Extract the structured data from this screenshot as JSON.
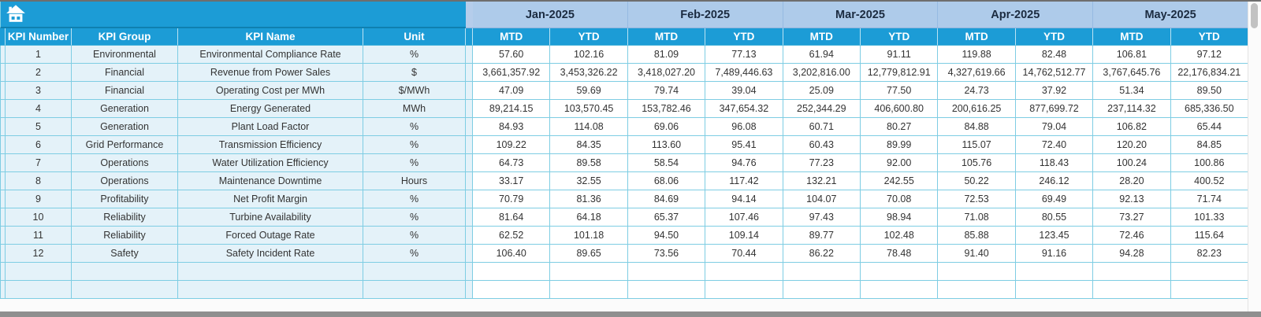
{
  "colors": {
    "header_cyan": "#1c9cd6",
    "month_header_blue": "#aecbea",
    "row_label_bg": "#e4f2f9",
    "grid_border_cyan": "#7ecde3",
    "month_text": "#1b2b40"
  },
  "labels": {
    "mtd": "MTD",
    "ytd": "YTD"
  },
  "table": {
    "left_headers": [
      "KPI Number",
      "KPI Group",
      "KPI Name",
      "Unit"
    ],
    "months": [
      "Jan-2025",
      "Feb-2025",
      "Mar-2025",
      "Apr-2025",
      "May-2025"
    ],
    "sub_headers": [
      "MTD",
      "YTD"
    ],
    "empty_row_count": 2,
    "rows": [
      {
        "kpi_number": "1",
        "kpi_group": "Environmental",
        "kpi_name": "Environmental Compliance Rate",
        "unit": "%",
        "values": [
          "57.60",
          "102.16",
          "81.09",
          "77.13",
          "61.94",
          "91.11",
          "119.88",
          "82.48",
          "106.81",
          "97.12"
        ]
      },
      {
        "kpi_number": "2",
        "kpi_group": "Financial",
        "kpi_name": "Revenue from Power Sales",
        "unit": "$",
        "values": [
          "3,661,357.92",
          "3,453,326.22",
          "3,418,027.20",
          "7,489,446.63",
          "3,202,816.00",
          "12,779,812.91",
          "4,327,619.66",
          "14,762,512.77",
          "3,767,645.76",
          "22,176,834.21"
        ]
      },
      {
        "kpi_number": "3",
        "kpi_group": "Financial",
        "kpi_name": "Operating Cost per MWh",
        "unit": "$/MWh",
        "values": [
          "47.09",
          "59.69",
          "79.74",
          "39.04",
          "25.09",
          "77.50",
          "24.73",
          "37.92",
          "51.34",
          "89.50"
        ]
      },
      {
        "kpi_number": "4",
        "kpi_group": "Generation",
        "kpi_name": "Energy Generated",
        "unit": "MWh",
        "values": [
          "89,214.15",
          "103,570.45",
          "153,782.46",
          "347,654.32",
          "252,344.29",
          "406,600.80",
          "200,616.25",
          "877,699.72",
          "237,114.32",
          "685,336.50"
        ]
      },
      {
        "kpi_number": "5",
        "kpi_group": "Generation",
        "kpi_name": "Plant Load Factor",
        "unit": "%",
        "values": [
          "84.93",
          "114.08",
          "69.06",
          "96.08",
          "60.71",
          "80.27",
          "84.88",
          "79.04",
          "106.82",
          "65.44"
        ]
      },
      {
        "kpi_number": "6",
        "kpi_group": "Grid Performance",
        "kpi_name": "Transmission Efficiency",
        "unit": "%",
        "values": [
          "109.22",
          "84.35",
          "113.60",
          "95.41",
          "60.43",
          "89.99",
          "115.07",
          "72.40",
          "120.20",
          "84.85"
        ]
      },
      {
        "kpi_number": "7",
        "kpi_group": "Operations",
        "kpi_name": "Water Utilization Efficiency",
        "unit": "%",
        "values": [
          "64.73",
          "89.58",
          "58.54",
          "94.76",
          "77.23",
          "92.00",
          "105.76",
          "118.43",
          "100.24",
          "100.86"
        ]
      },
      {
        "kpi_number": "8",
        "kpi_group": "Operations",
        "kpi_name": "Maintenance Downtime",
        "unit": "Hours",
        "values": [
          "33.17",
          "32.55",
          "68.06",
          "117.42",
          "132.21",
          "242.55",
          "50.22",
          "246.12",
          "28.20",
          "400.52"
        ]
      },
      {
        "kpi_number": "9",
        "kpi_group": "Profitability",
        "kpi_name": "Net Profit Margin",
        "unit": "%",
        "values": [
          "70.79",
          "81.36",
          "84.69",
          "94.14",
          "104.07",
          "70.08",
          "72.53",
          "69.49",
          "92.13",
          "71.74"
        ]
      },
      {
        "kpi_number": "10",
        "kpi_group": "Reliability",
        "kpi_name": "Turbine Availability",
        "unit": "%",
        "values": [
          "81.64",
          "64.18",
          "65.37",
          "107.46",
          "97.43",
          "98.94",
          "71.08",
          "80.55",
          "73.27",
          "101.33"
        ]
      },
      {
        "kpi_number": "11",
        "kpi_group": "Reliability",
        "kpi_name": "Forced Outage Rate",
        "unit": "%",
        "values": [
          "62.52",
          "101.18",
          "94.50",
          "109.14",
          "89.77",
          "102.48",
          "85.88",
          "123.45",
          "72.46",
          "115.64"
        ]
      },
      {
        "kpi_number": "12",
        "kpi_group": "Safety",
        "kpi_name": "Safety Incident Rate",
        "unit": "%",
        "values": [
          "106.40",
          "89.65",
          "73.56",
          "70.44",
          "86.22",
          "78.48",
          "91.40",
          "91.16",
          "94.28",
          "82.23"
        ]
      }
    ]
  }
}
